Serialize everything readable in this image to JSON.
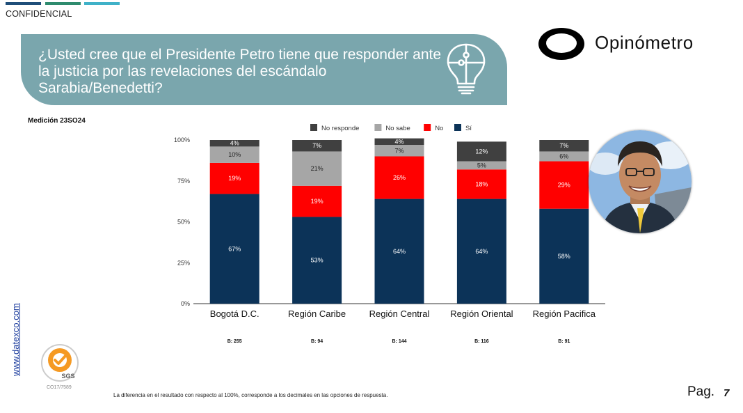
{
  "header": {
    "confidential": "CONFIDENCIAL",
    "question": "¿Usted cree que el Presidente Petro tiene que responder ante la justicia por las revelaciones del escándalo Sarabia/Benedetti?",
    "brand": "Opinómetro",
    "accent_colors": [
      "#1f4e79",
      "#2e8b6e",
      "#3fb1c8"
    ],
    "banner_color": "#7aa6ad",
    "icon": "lightbulb-puzzle-icon"
  },
  "measurement_label": "Medición 23SO24",
  "chart_data": {
    "type": "bar",
    "stacked": true,
    "categories": [
      "Bogotá D.C.",
      "Región Caribe",
      "Región Central",
      "Región Oriental",
      "Región Pacifica"
    ],
    "series": [
      {
        "name": "Sí",
        "color": "#0c3358",
        "values": [
          67,
          53,
          64,
          64,
          58
        ]
      },
      {
        "name": "No",
        "color": "#ff0000",
        "values": [
          19,
          19,
          26,
          18,
          29
        ]
      },
      {
        "name": "No sabe",
        "color": "#a6a6a6",
        "values": [
          10,
          21,
          7,
          5,
          6
        ]
      },
      {
        "name": "No responde",
        "color": "#404040",
        "values": [
          4,
          7,
          4,
          12,
          7
        ]
      }
    ],
    "legend_order": [
      "No responde",
      "No sabe",
      "No",
      "Sí"
    ],
    "legend_position": "top",
    "yticks": [
      "0%",
      "25%",
      "50%",
      "75%",
      "100%"
    ],
    "ylim": [
      0,
      100
    ],
    "base_labels": [
      "B: 255",
      "B: 94",
      "B: 144",
      "B: 116",
      "B: 91"
    ]
  },
  "footer": {
    "website": "www.datexco.com",
    "cert_code": "CO17/7589",
    "sgs_label": "SGS",
    "note": "La diferencia en el resultado con respecto al 100%, corresponde a los decimales en las opciones de respuesta.",
    "page_label": "Pag.",
    "page_number": "7"
  }
}
